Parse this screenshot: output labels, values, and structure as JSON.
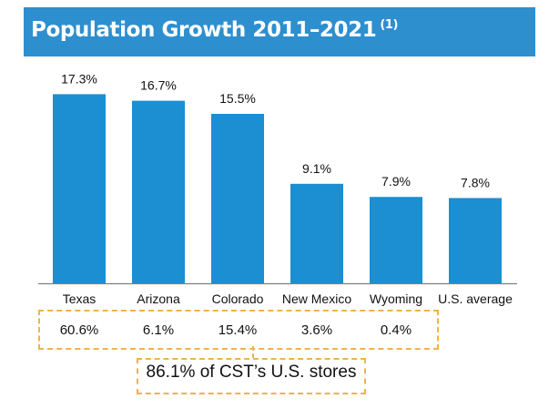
{
  "title": "Population Growth 2011–2021",
  "title_note": "(1)",
  "colors": {
    "header": "#2e8fcf",
    "bar": "#1b8fd2",
    "dashed_box": "#f2b24a",
    "axis": "#7f7f7f"
  },
  "chart_data": {
    "type": "bar",
    "title": "Population Growth 2011–2021",
    "categories": [
      "Texas",
      "Arizona",
      "Colorado",
      "New Mexico",
      "Wyoming",
      "U.S. average"
    ],
    "values": [
      17.3,
      16.7,
      15.5,
      9.1,
      7.9,
      7.8
    ],
    "value_labels": [
      "17.3%",
      "16.7%",
      "15.5%",
      "9.1%",
      "7.9%",
      "7.8%"
    ],
    "ylim": [
      0,
      20
    ],
    "xlabel": "",
    "ylabel": "",
    "grid": false,
    "legend": "none"
  },
  "store_share": {
    "values": [
      "60.6%",
      "6.1%",
      "15.4%",
      "3.6%",
      "0.4%"
    ],
    "total_label": "86.1% of CST’s U.S. stores"
  }
}
